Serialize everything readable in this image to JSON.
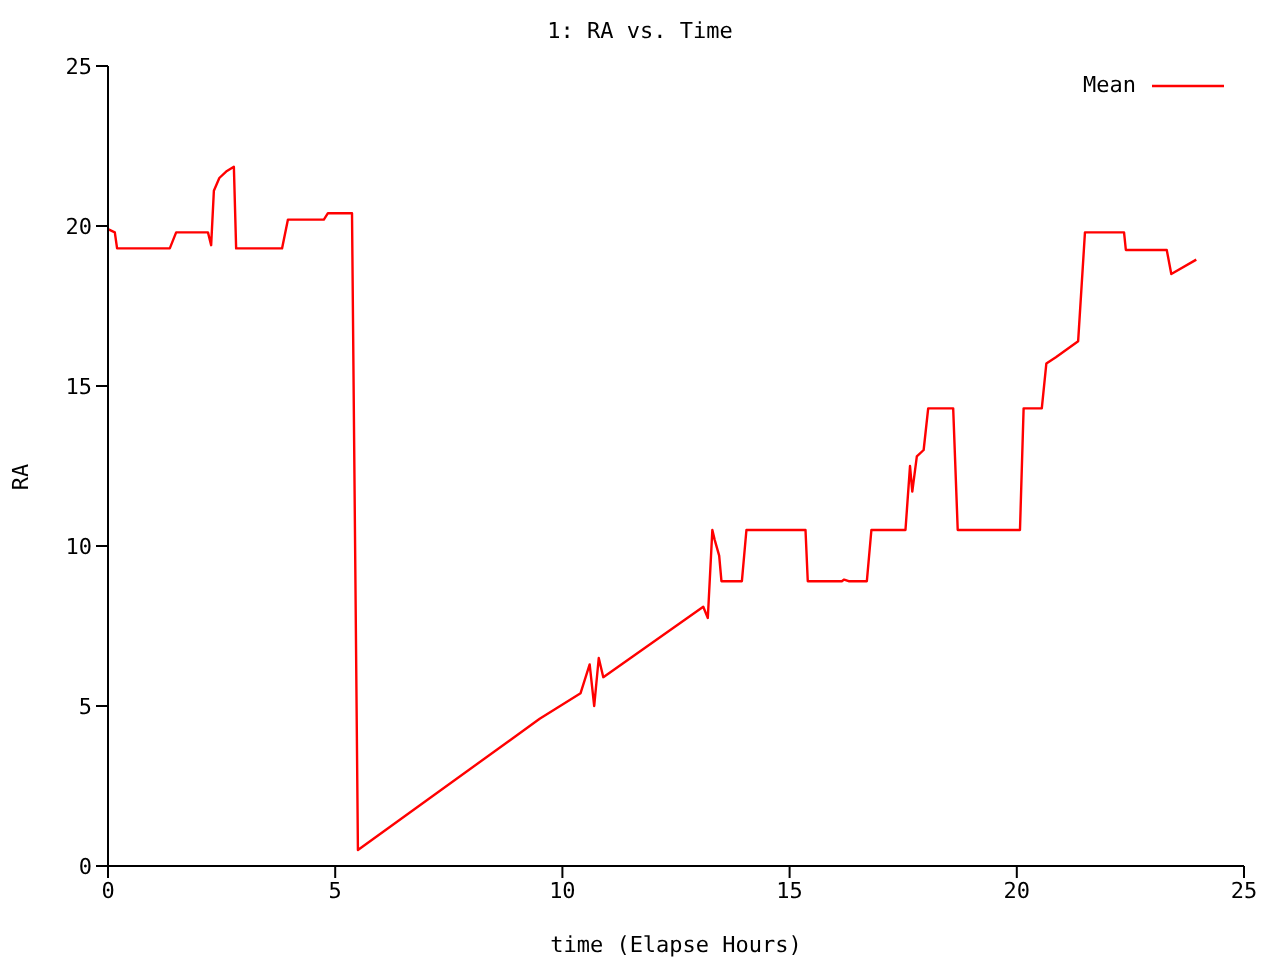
{
  "chart_data": {
    "type": "line",
    "title": "1: RA vs. Time",
    "xlabel": "time (Elapse Hours)",
    "ylabel": "RA",
    "xlim": [
      0,
      25
    ],
    "xticks": [
      0,
      5,
      10,
      15,
      20,
      25
    ],
    "ylim": [
      0,
      25
    ],
    "yticks": [
      0,
      5,
      10,
      15,
      20,
      25
    ],
    "grid": false,
    "legend": "top right",
    "marker": "none",
    "line_style": "solid",
    "series": [
      {
        "name": "Mean",
        "color": "#ff0000",
        "x": [
          0,
          0.15,
          0.2,
          1.36,
          1.5,
          2.2,
          2.27,
          2.33,
          2.45,
          2.6,
          2.77,
          2.82,
          3.83,
          3.96,
          4.75,
          4.84,
          5.37,
          5.5,
          9.5,
          10.4,
          10.6,
          10.7,
          10.8,
          10.9,
          13.1,
          13.2,
          13.3,
          13.35,
          13.45,
          13.5,
          13.95,
          14.05,
          15.35,
          15.4,
          16.15,
          16.2,
          16.3,
          16.7,
          16.8,
          17.55,
          17.65,
          17.7,
          17.8,
          17.95,
          18.05,
          18.6,
          18.7,
          20.07,
          20.15,
          20.55,
          20.65,
          20.86,
          21.35,
          21.5,
          22.36,
          22.4,
          23.3,
          23.4,
          23.95
        ],
        "values": [
          19.9,
          19.8,
          19.3,
          19.3,
          19.8,
          19.8,
          19.4,
          21.1,
          21.5,
          21.7,
          21.85,
          19.3,
          19.3,
          20.2,
          20.2,
          20.4,
          20.4,
          0.5,
          4.6,
          5.4,
          6.3,
          5.0,
          6.5,
          5.9,
          8.1,
          7.75,
          10.5,
          10.2,
          9.7,
          8.9,
          8.9,
          10.5,
          10.5,
          8.9,
          8.9,
          8.95,
          8.9,
          8.9,
          10.5,
          10.5,
          12.5,
          11.7,
          12.8,
          13.0,
          14.3,
          14.3,
          10.5,
          10.5,
          14.3,
          14.3,
          15.7,
          15.9,
          16.4,
          19.8,
          19.8,
          19.25,
          19.25,
          18.5,
          18.95
        ]
      }
    ]
  }
}
